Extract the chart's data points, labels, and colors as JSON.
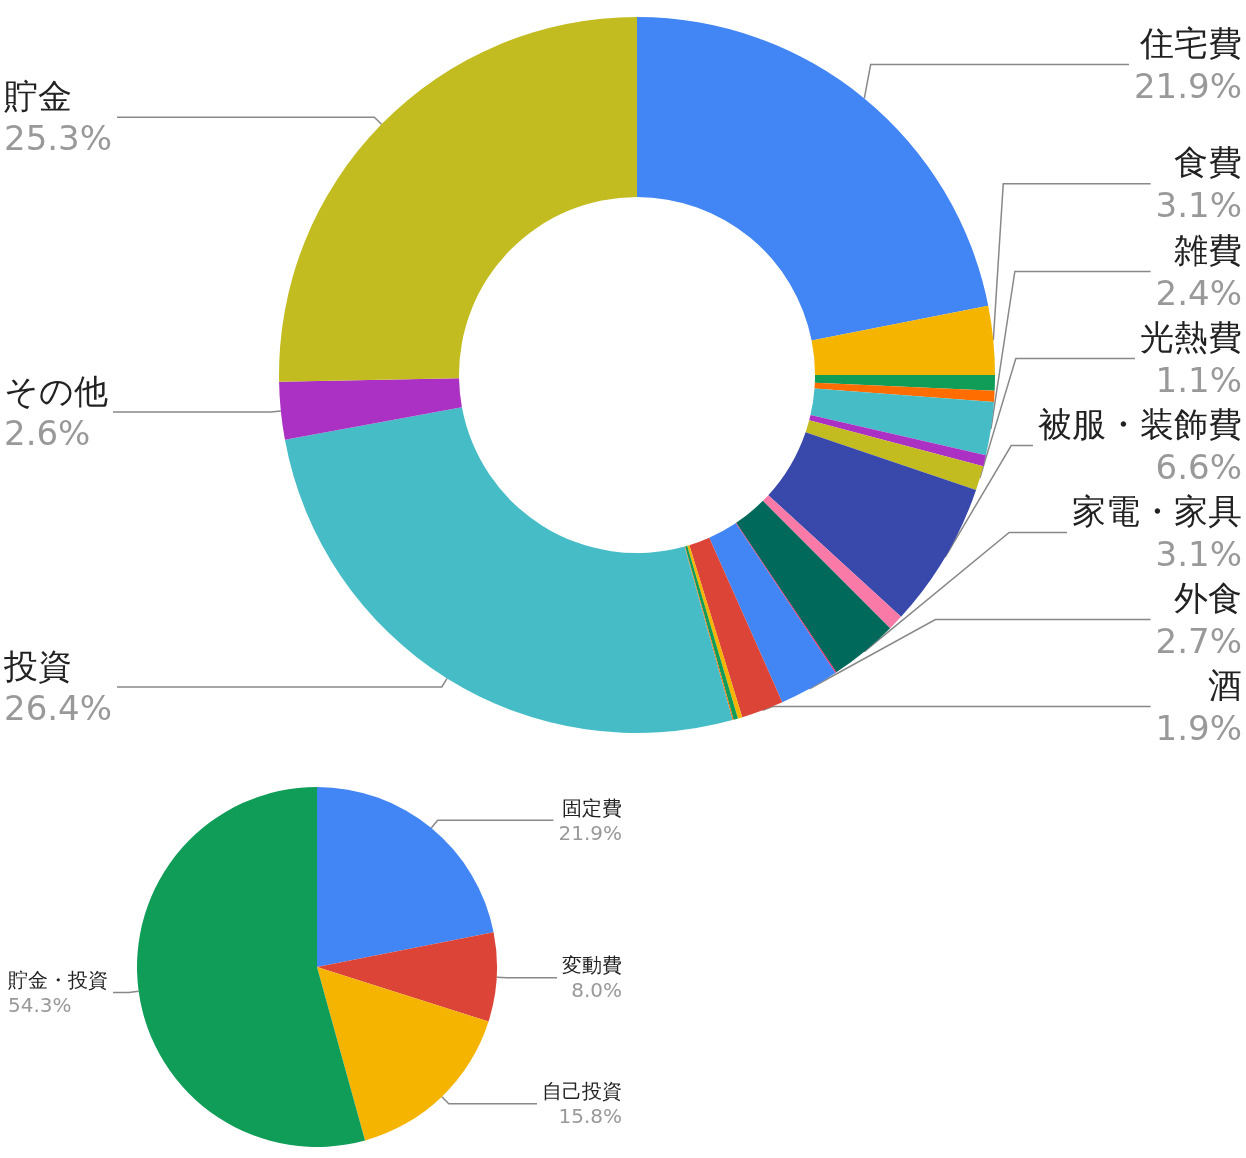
{
  "chart_data": [
    {
      "type": "donut",
      "categories": [
        "住宅費",
        "食費",
        null,
        null,
        "雑費",
        null,
        "光熱費",
        "被服・装飾費",
        null,
        "家電・家具",
        null,
        "外食",
        "酒",
        null,
        null,
        null,
        "投資",
        "その他",
        "貯金"
      ],
      "values": [
        21.9,
        3.1,
        0.7,
        0.5,
        2.4,
        0.5,
        1.1,
        6.6,
        0.7,
        3.1,
        0.05,
        2.7,
        1.9,
        0.2,
        0.2,
        0.05,
        26.4,
        2.6,
        25.3
      ],
      "value_labels": [
        "21.9%",
        "3.1%",
        null,
        null,
        "2.4%",
        null,
        "1.1%",
        "6.6%",
        null,
        "3.1%",
        null,
        "2.7%",
        "1.9%",
        null,
        null,
        null,
        "26.4%",
        "2.6%",
        "25.3%"
      ],
      "colors": [
        "#4285f4",
        "#f4b400",
        "#0f9d58",
        "#ff6d01",
        "#46bdc6",
        "#ab30c4",
        "#c2bc20",
        "#3949ab",
        "#f97aa6",
        "#00695c",
        "#e91e63",
        "#4285f4",
        "#db4437",
        "#f4b400",
        "#0f9d58",
        "#ff6d01",
        "#46bdc6",
        "#ab30c4",
        "#c2bc20"
      ]
    },
    {
      "type": "pie",
      "categories": [
        "固定費",
        "変動費",
        "自己投資",
        "貯金・投資"
      ],
      "values": [
        21.9,
        8.0,
        15.8,
        54.3
      ],
      "value_labels": [
        "21.9%",
        "8.0%",
        "15.8%",
        "54.3%"
      ],
      "colors": [
        "#4285f4",
        "#db4437",
        "#f4b400",
        "#0f9d58"
      ]
    }
  ]
}
